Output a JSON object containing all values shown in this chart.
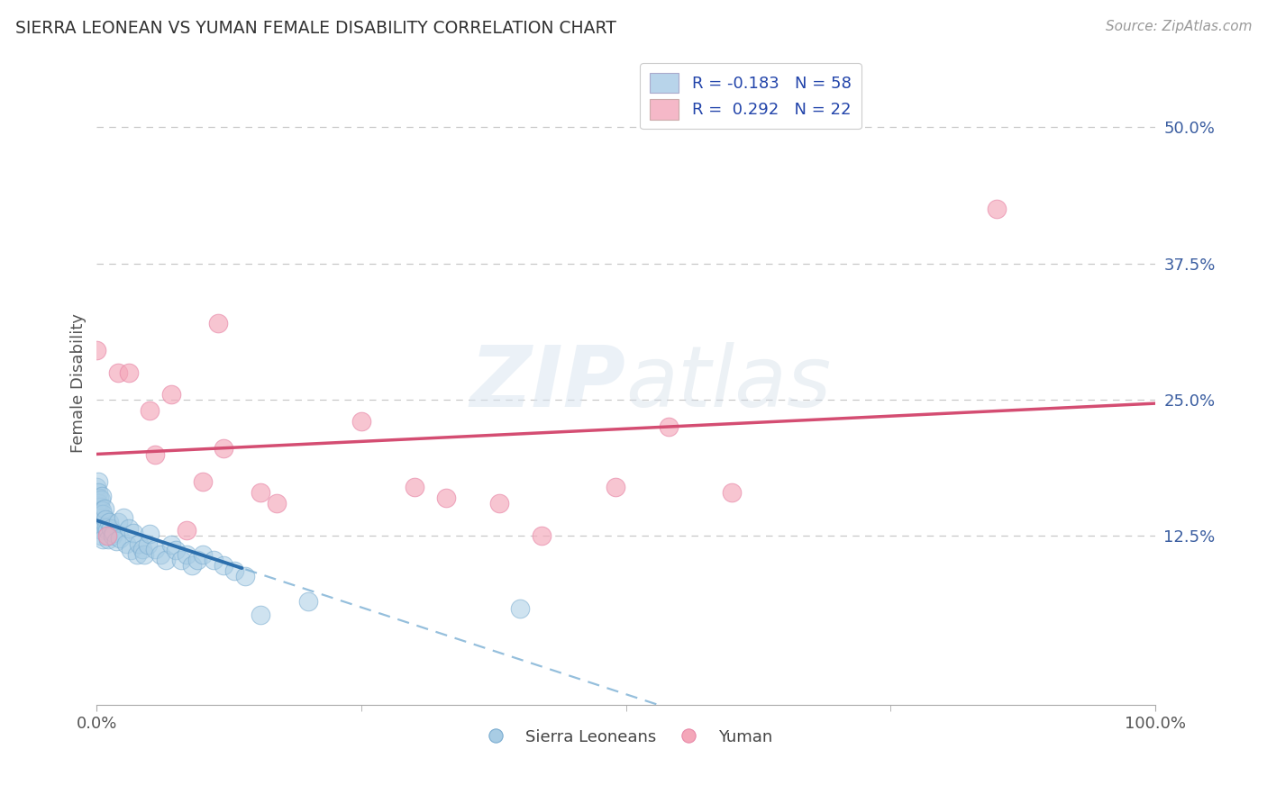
{
  "title": "SIERRA LEONEAN VS YUMAN FEMALE DISABILITY CORRELATION CHART",
  "source": "Source: ZipAtlas.com",
  "ylabel": "Female Disability",
  "xlim": [
    0,
    1.0
  ],
  "ylim": [
    -0.03,
    0.56
  ],
  "yticks": [
    0.125,
    0.25,
    0.375,
    0.5
  ],
  "ytick_labels": [
    "12.5%",
    "25.0%",
    "37.5%",
    "50.0%"
  ],
  "xticks": [
    0.0,
    1.0
  ],
  "xtick_labels": [
    "0.0%",
    "100.0%"
  ],
  "legend_r1": "R = -0.183",
  "legend_n1": "N = 58",
  "legend_r2": "R =  0.292",
  "legend_n2": "N = 22",
  "blue_color": "#a8cce4",
  "pink_color": "#f4a7b9",
  "blue_line_solid_color": "#2c6fad",
  "blue_line_dash_color": "#7bafd4",
  "pink_line_color": "#d44d72",
  "background_color": "#ffffff",
  "legend_blue_patch": "#b8d4ea",
  "legend_pink_patch": "#f5b8c8",
  "sierra_x": [
    0.0,
    0.0,
    0.001,
    0.001,
    0.001,
    0.002,
    0.002,
    0.002,
    0.003,
    0.003,
    0.003,
    0.004,
    0.004,
    0.005,
    0.005,
    0.005,
    0.006,
    0.006,
    0.007,
    0.008,
    0.009,
    0.01,
    0.011,
    0.012,
    0.013,
    0.015,
    0.016,
    0.018,
    0.02,
    0.022,
    0.025,
    0.028,
    0.03,
    0.032,
    0.035,
    0.038,
    0.04,
    0.043,
    0.045,
    0.048,
    0.05,
    0.055,
    0.06,
    0.065,
    0.07,
    0.075,
    0.08,
    0.085,
    0.09,
    0.095,
    0.1,
    0.11,
    0.12,
    0.13,
    0.14,
    0.155,
    0.2,
    0.4
  ],
  "sierra_y": [
    0.16,
    0.17,
    0.175,
    0.165,
    0.155,
    0.16,
    0.148,
    0.138,
    0.152,
    0.145,
    0.135,
    0.158,
    0.125,
    0.162,
    0.148,
    0.13,
    0.145,
    0.122,
    0.15,
    0.14,
    0.133,
    0.13,
    0.122,
    0.138,
    0.132,
    0.125,
    0.128,
    0.12,
    0.138,
    0.123,
    0.142,
    0.118,
    0.132,
    0.112,
    0.128,
    0.108,
    0.118,
    0.113,
    0.108,
    0.117,
    0.127,
    0.113,
    0.108,
    0.103,
    0.117,
    0.112,
    0.103,
    0.108,
    0.098,
    0.103,
    0.108,
    0.103,
    0.098,
    0.093,
    0.088,
    0.053,
    0.065,
    0.058
  ],
  "yuman_x": [
    0.0,
    0.01,
    0.02,
    0.03,
    0.05,
    0.055,
    0.07,
    0.085,
    0.1,
    0.115,
    0.12,
    0.155,
    0.17,
    0.25,
    0.3,
    0.33,
    0.38,
    0.42,
    0.49,
    0.54,
    0.6,
    0.85
  ],
  "yuman_y": [
    0.295,
    0.125,
    0.275,
    0.275,
    0.24,
    0.2,
    0.255,
    0.13,
    0.175,
    0.32,
    0.205,
    0.165,
    0.155,
    0.23,
    0.17,
    0.16,
    0.155,
    0.125,
    0.17,
    0.225,
    0.165,
    0.425
  ]
}
